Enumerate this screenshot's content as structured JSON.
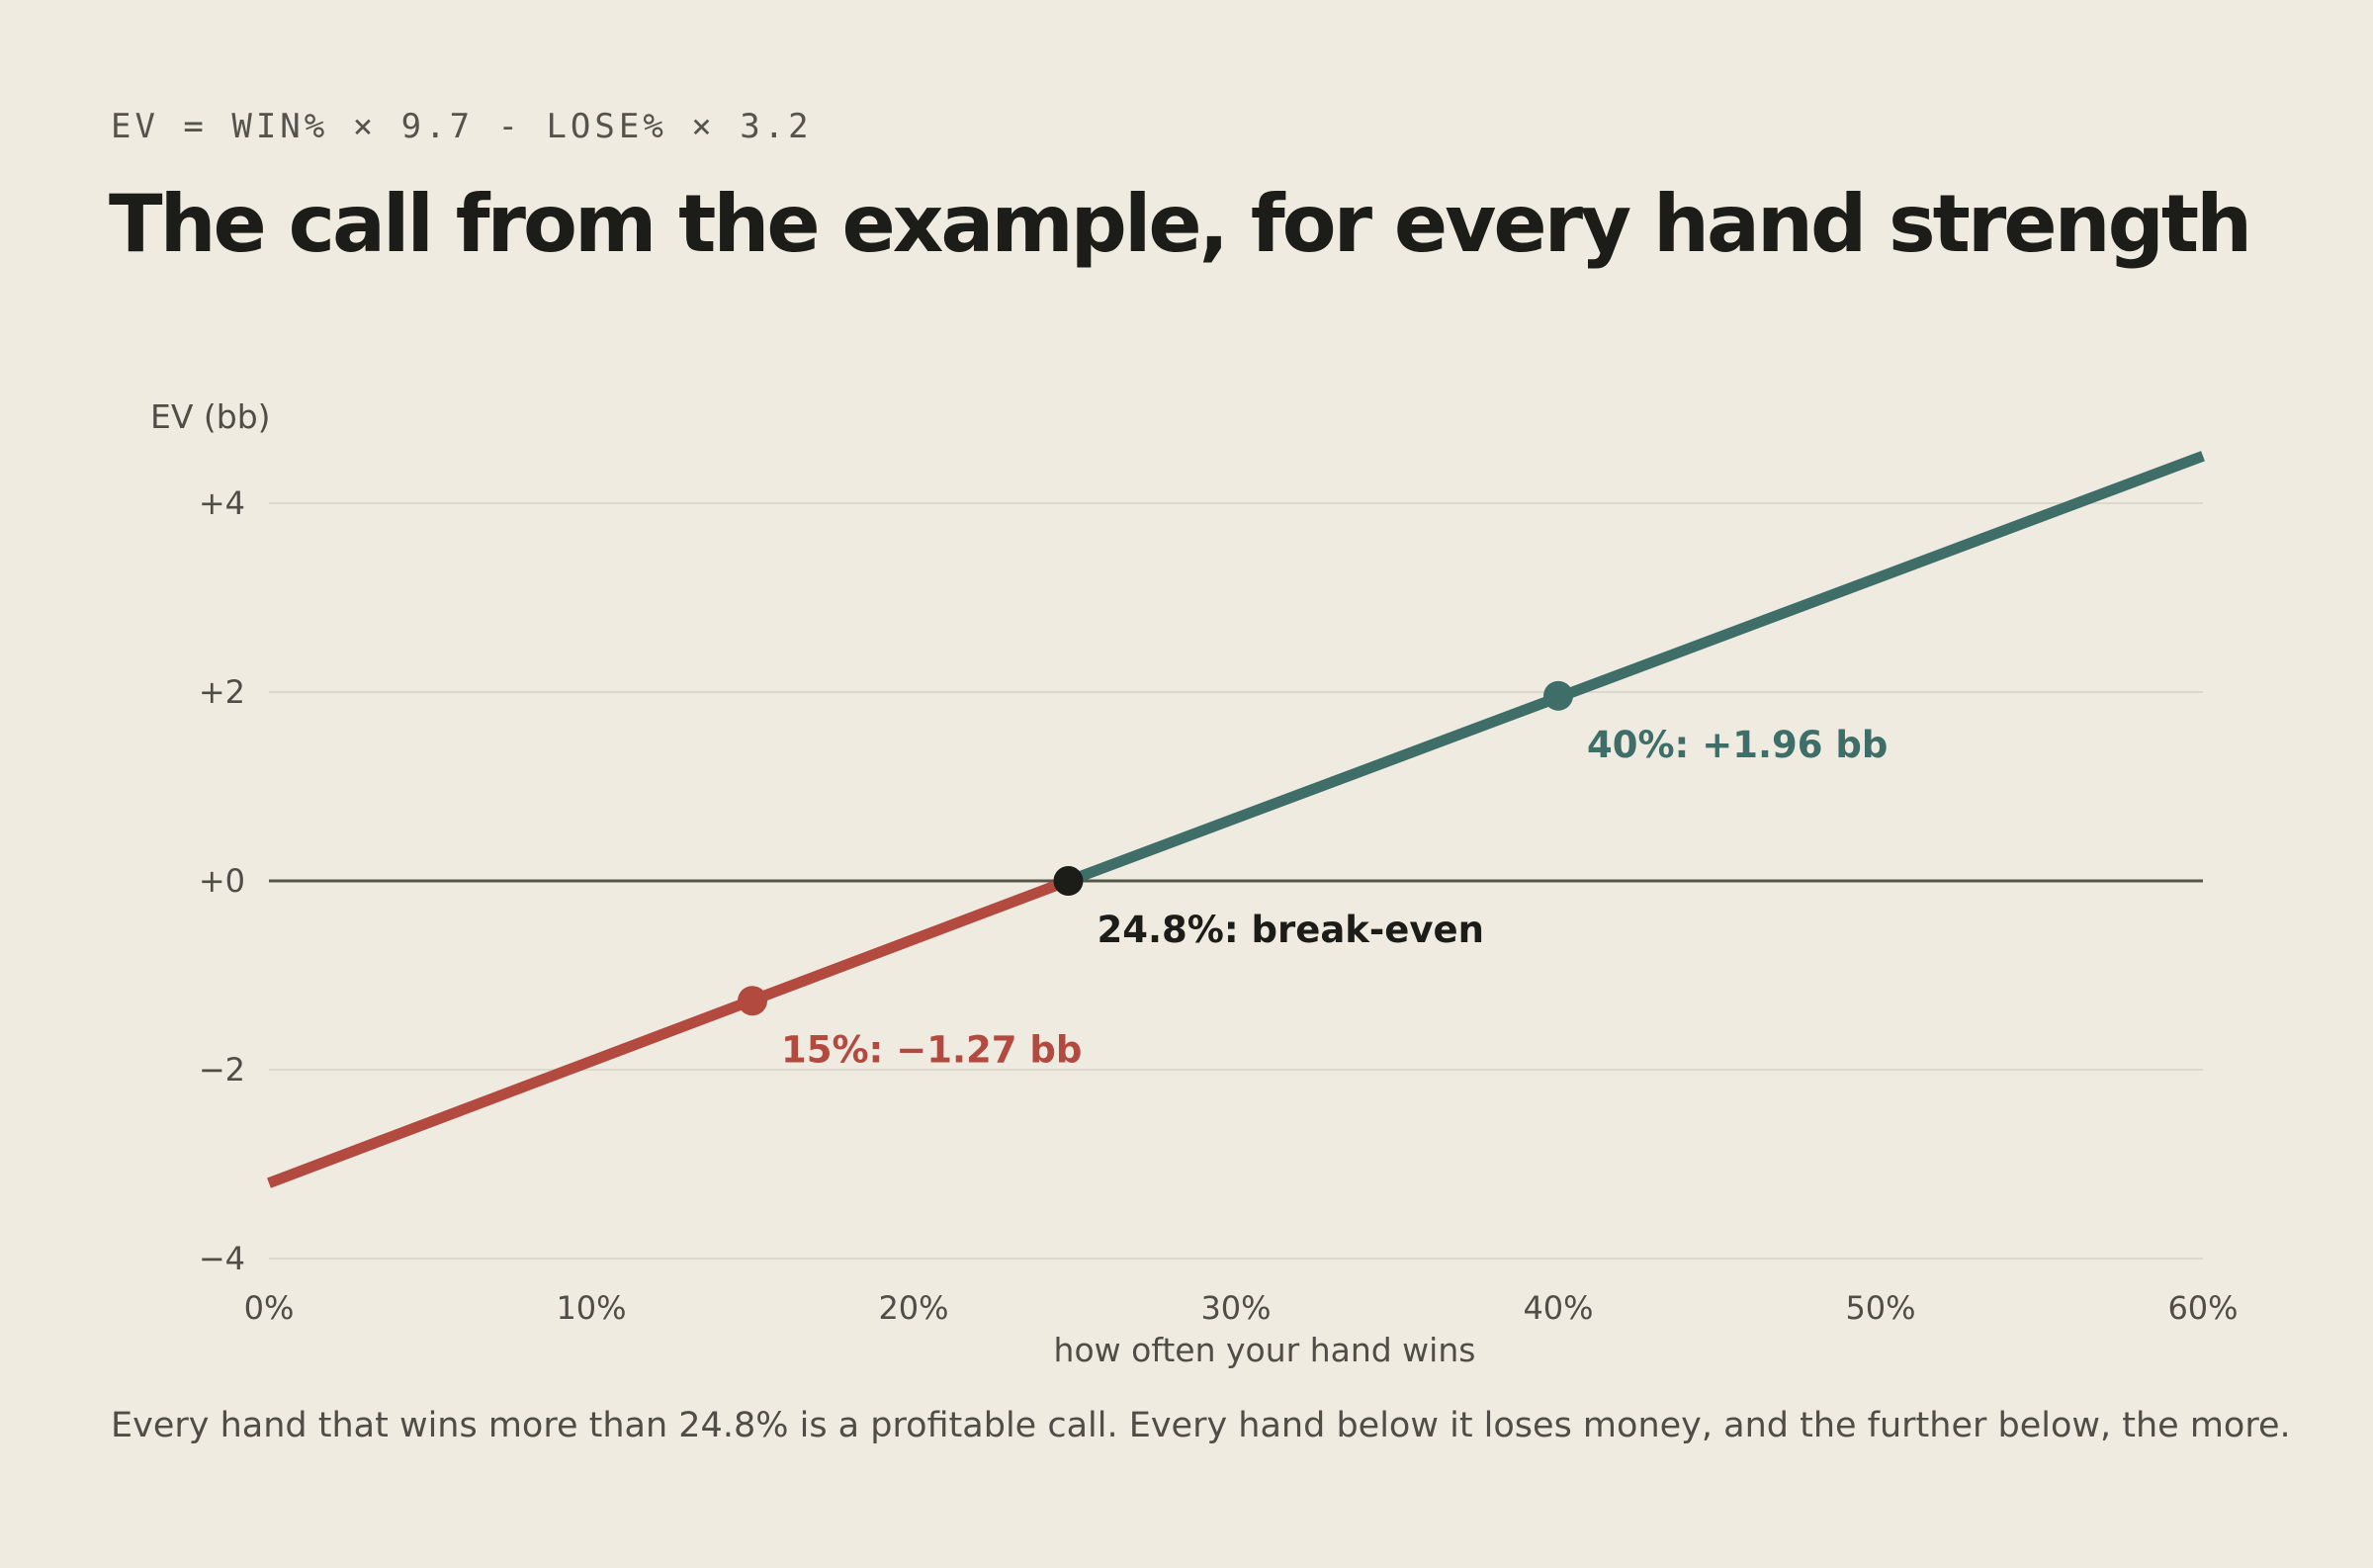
{
  "header": {
    "formula": "EV = WIN% × 9.7 - LOSE% × 3.2",
    "title": "The call from the example, for every hand strength"
  },
  "caption": "Every hand that wins more than 24.8% is a profitable call. Every hand below it loses money, and the further below, the more.",
  "colors": {
    "background": "#efebe1",
    "loss": "#b24a40",
    "profit": "#3f6e69",
    "breakeven": "#1c1c18",
    "zero_line": "#55574c",
    "grid": "#dcd8cd"
  },
  "chart_data": {
    "type": "line",
    "title": "The call from the example, for every hand strength",
    "xlabel": "how often your hand wins",
    "ylabel": "EV (bb)",
    "xlim": [
      0,
      60
    ],
    "ylim": [
      -4,
      4.5
    ],
    "x_ticks": [
      0,
      10,
      20,
      30,
      40,
      50,
      60
    ],
    "x_tick_labels": [
      "0%",
      "10%",
      "20%",
      "30%",
      "40%",
      "50%",
      "60%"
    ],
    "y_ticks": [
      4,
      2,
      0,
      -2,
      -4
    ],
    "y_tick_labels": [
      "+4",
      "+2",
      "+0",
      "−2",
      "−4"
    ],
    "grid": true,
    "series": [
      {
        "segment": "loss",
        "color": "#b24a40",
        "x": [
          0,
          24.8
        ],
        "y": [
          -3.2,
          0
        ]
      },
      {
        "segment": "profit",
        "color": "#3f6e69",
        "x": [
          24.8,
          60
        ],
        "y": [
          0,
          4.5
        ]
      }
    ],
    "points": [
      {
        "x": 15,
        "y": -1.27,
        "label": "15%: −1.27 bb",
        "color": "#b24a40"
      },
      {
        "x": 24.8,
        "y": 0,
        "label": "24.8%: break-even",
        "color": "#1c1c18"
      },
      {
        "x": 40,
        "y": 1.96,
        "label": "40%: +1.96 bb",
        "color": "#3f6e69"
      }
    ]
  }
}
